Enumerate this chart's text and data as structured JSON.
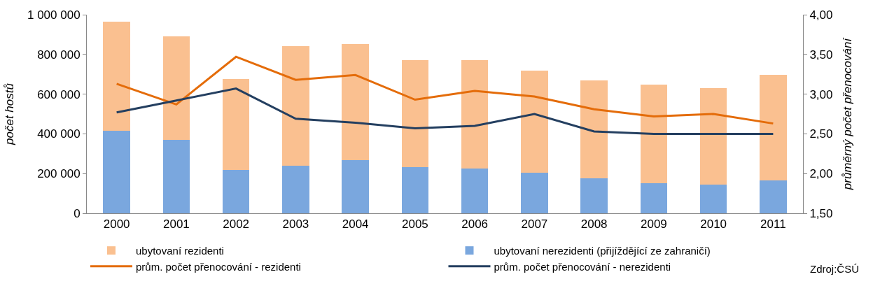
{
  "chart_data": {
    "type": "bar",
    "stacked": true,
    "ylabel": "počet hostů",
    "y2label": "průměrný počet přenocování",
    "categories": [
      "2000",
      "2001",
      "2002",
      "2003",
      "2004",
      "2005",
      "2006",
      "2007",
      "2008",
      "2009",
      "2010",
      "2011"
    ],
    "series": [
      {
        "name": "ubytovaní nerezidenti (přijíždějící ze zahraničí)",
        "color": "#7aa7de",
        "values": [
          415000,
          368000,
          218000,
          239000,
          266000,
          232000,
          225000,
          205000,
          177000,
          150000,
          143000,
          164000
        ]
      },
      {
        "name": "ubytovaní rezidenti",
        "color": "#fac090",
        "values": [
          551000,
          522000,
          458000,
          601000,
          587000,
          539000,
          546000,
          515000,
          492000,
          498000,
          488000,
          532000
        ]
      },
      {
        "name": "prům. počet přenocování - rezidenti",
        "type": "line",
        "axis": "y2",
        "color": "#e46c0a",
        "values": [
          3.13,
          2.87,
          3.47,
          3.18,
          3.24,
          2.93,
          3.04,
          2.97,
          2.81,
          2.72,
          2.75,
          2.63
        ]
      },
      {
        "name": "prům. počet přenocování - nerezidenti",
        "type": "line",
        "axis": "y2",
        "color": "#243f60",
        "values": [
          2.77,
          2.92,
          3.07,
          2.69,
          2.64,
          2.57,
          2.6,
          2.75,
          2.53,
          2.5,
          2.5,
          2.5
        ]
      }
    ],
    "ylim": [
      0,
      1000000
    ],
    "yticks": [
      0,
      {
        "value": 200000,
        "label": "200 000"
      },
      {
        "value": 400000,
        "label": "400 000"
      },
      {
        "value": 600000,
        "label": "600 000"
      },
      {
        "value": 800000,
        "label": "800 000"
      },
      {
        "value": 1000000,
        "label": "1 000 000"
      }
    ],
    "y2lim": [
      1.5,
      4.0
    ],
    "y2ticks": [
      {
        "value": 1.5,
        "label": "1,50"
      },
      {
        "value": 2.0,
        "label": "2,00"
      },
      {
        "value": 2.5,
        "label": "2,50"
      },
      {
        "value": 3.0,
        "label": "3,00"
      },
      {
        "value": 3.5,
        "label": "3,50"
      },
      {
        "value": 4.0,
        "label": "4,00"
      }
    ],
    "legend": "bottom",
    "marker": "none",
    "line_style": "solid",
    "annotations": [
      "Zdroj:ČSÚ"
    ]
  }
}
